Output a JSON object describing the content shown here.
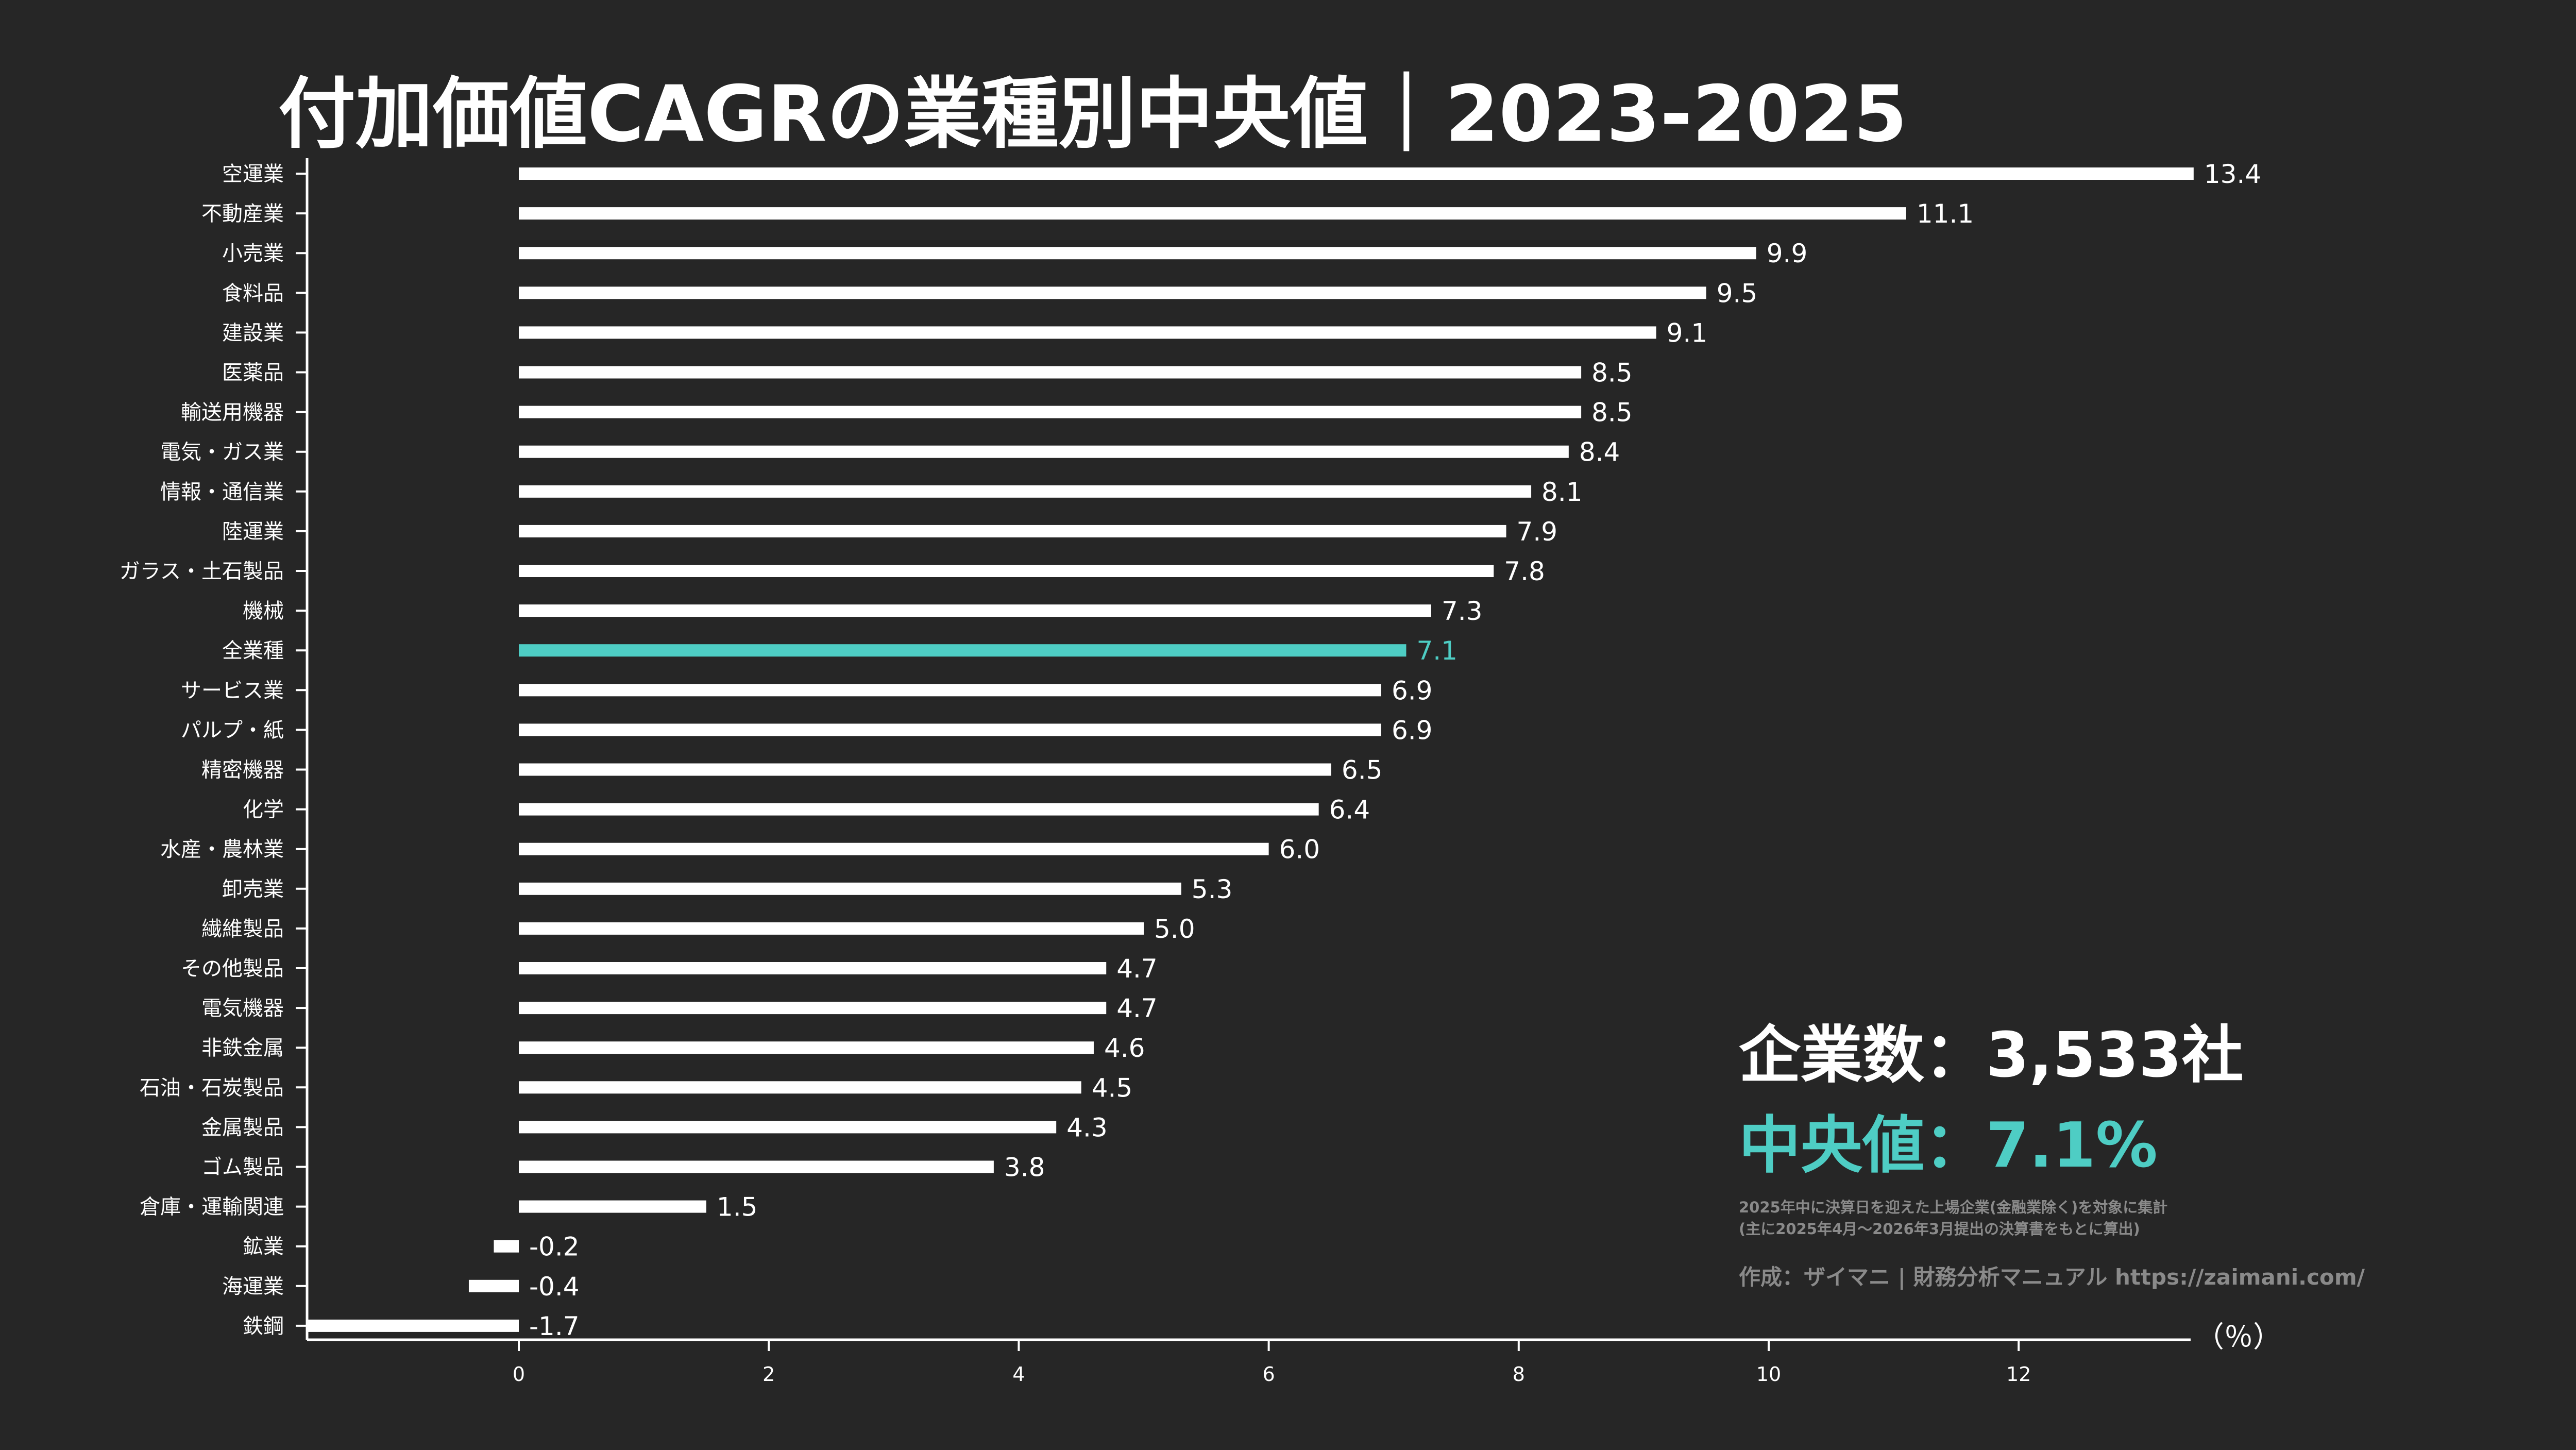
{
  "title": "付加価値CAGRの業種別中央値｜2023-2025",
  "info": {
    "company_count": "企業数：3,533社",
    "median": "中央値：7.1%",
    "note_line1": "2025年中に決算日を迎えた上場企業(金融業除く)を対象に集計",
    "note_line2": "(主に2025年4月〜2026年3月提出の決算書をもとに算出)",
    "credit": "作成：ザイマニ | 財務分析マニュアル https://zaimani.com/"
  },
  "colors": {
    "background": "#262626",
    "bar": "#ffffff",
    "highlight": "#4ecdc4",
    "note": "#8a8a8a"
  },
  "chart_data": {
    "type": "bar",
    "orientation": "horizontal",
    "categories": [
      "空運業",
      "不動産業",
      "小売業",
      "食料品",
      "建設業",
      "医薬品",
      "輸送用機器",
      "電気・ガス業",
      "情報・通信業",
      "陸運業",
      "ガラス・土石製品",
      "機械",
      "全業種",
      "サービス業",
      "パルプ・紙",
      "精密機器",
      "化学",
      "水産・農林業",
      "卸売業",
      "繊維製品",
      "その他製品",
      "電気機器",
      "非鉄金属",
      "石油・石炭製品",
      "金属製品",
      "ゴム製品",
      "倉庫・運輸関連",
      "鉱業",
      "海運業",
      "鉄鋼"
    ],
    "values": [
      13.4,
      11.1,
      9.9,
      9.5,
      9.1,
      8.5,
      8.5,
      8.4,
      8.1,
      7.9,
      7.8,
      7.3,
      7.1,
      6.9,
      6.9,
      6.5,
      6.4,
      6.0,
      5.3,
      5.0,
      4.7,
      4.7,
      4.6,
      4.5,
      4.3,
      3.8,
      1.5,
      -0.2,
      -0.4,
      -1.7
    ],
    "value_labels": [
      "13.4",
      "11.1",
      "9.9",
      "9.5",
      "9.1",
      "8.5",
      "8.5",
      "8.4",
      "8.1",
      "7.9",
      "7.8",
      "7.3",
      "7.1",
      "6.9",
      "6.9",
      "6.5",
      "6.4",
      "6.0",
      "5.3",
      "5.0",
      "4.7",
      "4.7",
      "4.6",
      "4.5",
      "4.3",
      "3.8",
      "1.5",
      "-0.2",
      "-0.4",
      "-1.7"
    ],
    "highlight_category": "全業種",
    "xticks": [
      0,
      2,
      4,
      6,
      8,
      10,
      12
    ],
    "xlim": [
      -1.7,
      13.4
    ],
    "xlabel": "（％）",
    "grid": false
  }
}
